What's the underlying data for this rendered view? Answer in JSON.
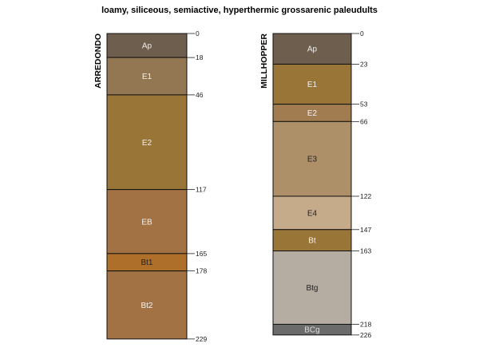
{
  "title": "loamy, siliceous, semiactive, hyperthermic grossarenic paleudults",
  "profiles": [
    {
      "name": "ARREDONDO",
      "horizons": [
        {
          "name": "Ap",
          "top": 0,
          "bottom": 18,
          "color": "#6e5e4d",
          "text_color": "#eeeeee"
        },
        {
          "name": "E1",
          "top": 18,
          "bottom": 46,
          "color": "#937652",
          "text_color": "#f2f2f2"
        },
        {
          "name": "E2",
          "top": 46,
          "bottom": 117,
          "color": "#9a7538",
          "text_color": "#f2f2f2"
        },
        {
          "name": "EB",
          "top": 117,
          "bottom": 165,
          "color": "#a27245",
          "text_color": "#f2f2f2"
        },
        {
          "name": "Bt1",
          "top": 165,
          "bottom": 178,
          "color": "#ad6f2a",
          "text_color": "#222222"
        },
        {
          "name": "Bt2",
          "top": 178,
          "bottom": 229,
          "color": "#a27245",
          "text_color": "#f2f2f2"
        }
      ]
    },
    {
      "name": "MILLHOPPER",
      "horizons": [
        {
          "name": "Ap",
          "top": 0,
          "bottom": 23,
          "color": "#6e5e4d",
          "text_color": "#eeeeee"
        },
        {
          "name": "E1",
          "top": 23,
          "bottom": 53,
          "color": "#9a7538",
          "text_color": "#f2f2f2"
        },
        {
          "name": "E2",
          "top": 53,
          "bottom": 66,
          "color": "#a07c50",
          "text_color": "#f2f2f2"
        },
        {
          "name": "E3",
          "top": 66,
          "bottom": 122,
          "color": "#ae9068",
          "text_color": "#222222"
        },
        {
          "name": "E4",
          "top": 122,
          "bottom": 147,
          "color": "#c6ab8a",
          "text_color": "#222222"
        },
        {
          "name": "Bt",
          "top": 147,
          "bottom": 163,
          "color": "#9a7538",
          "text_color": "#f2f2f2"
        },
        {
          "name": "Btg",
          "top": 163,
          "bottom": 218,
          "color": "#b5ada2",
          "text_color": "#222222"
        },
        {
          "name": "BCg",
          "top": 218,
          "bottom": 226,
          "color": "#6b6b6b",
          "text_color": "#dddddd"
        }
      ]
    }
  ]
}
